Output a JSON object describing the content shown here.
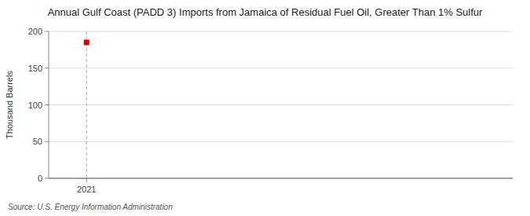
{
  "chart_data": {
    "type": "scatter",
    "title": "Annual Gulf Coast (PADD 3) Imports from Jamaica of Residual Fuel Oil, Greater Than 1% Sulfur",
    "y_label": "Thousand Barrels",
    "source": "Source: U.S. Energy Information Administration",
    "x": [
      2021
    ],
    "values": [
      185
    ],
    "color": "#cc0000",
    "marker": "square",
    "xlim": [
      2020.6,
      2025.5
    ],
    "xticks": [
      2021
    ],
    "ylim": [
      0,
      200
    ],
    "yticks": [
      0,
      50,
      100,
      150,
      200
    ],
    "grid": true
  }
}
